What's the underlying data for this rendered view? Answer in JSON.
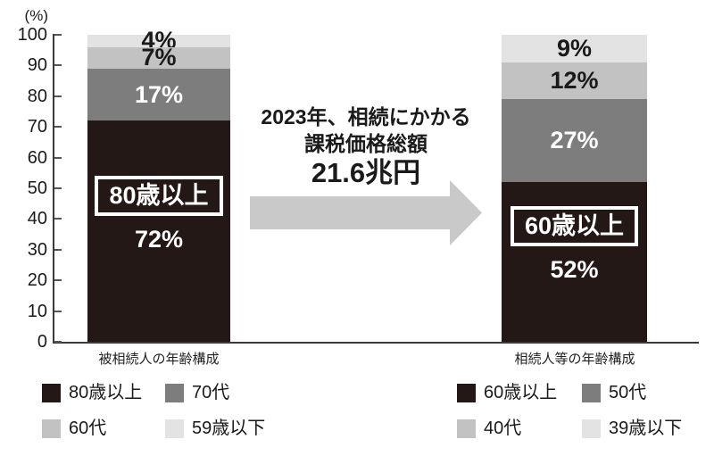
{
  "chart_data": {
    "type": "bar",
    "subtype": "stacked-percentage-columns",
    "unit_label": "(%)",
    "ylim": [
      0,
      100
    ],
    "yticks": [
      0,
      10,
      20,
      30,
      40,
      50,
      60,
      70,
      80,
      90,
      100
    ],
    "grid": false,
    "colors": {
      "dark": "#231815",
      "mid_gray": "#7d7d7d",
      "light_gray": "#c2c2c2",
      "lightest_gray": "#e3e3e3",
      "arrow": "#c9c9c9",
      "axis": "#3a3a3a"
    },
    "annotation": {
      "line1": "2023年、相続にかかる",
      "line2": "課税価格総額",
      "line3": "21.6兆円"
    },
    "bars": [
      {
        "caption": "被相続人の年齢構成",
        "segments": [
          {
            "label": "59歳以下",
            "value": 4,
            "value_label": "4%",
            "color": "#e3e3e3",
            "text_color": "#1a1a1a"
          },
          {
            "label": "60代",
            "value": 7,
            "value_label": "7%",
            "color": "#c2c2c2",
            "text_color": "#1a1a1a"
          },
          {
            "label": "70代",
            "value": 17,
            "value_label": "17%",
            "color": "#7d7d7d",
            "text_color": "#ffffff"
          },
          {
            "label": "80歳以上",
            "value": 72,
            "value_label": "72%",
            "color": "#231815",
            "text_color": "#ffffff",
            "highlight_label": "80歳以上"
          }
        ]
      },
      {
        "caption": "相続人等の年齢構成",
        "segments": [
          {
            "label": "39歳以下",
            "value": 9,
            "value_label": "9%",
            "color": "#e3e3e3",
            "text_color": "#1a1a1a"
          },
          {
            "label": "40代",
            "value": 12,
            "value_label": "12%",
            "color": "#c2c2c2",
            "text_color": "#1a1a1a"
          },
          {
            "label": "50代",
            "value": 27,
            "value_label": "27%",
            "color": "#7d7d7d",
            "text_color": "#ffffff"
          },
          {
            "label": "60歳以上",
            "value": 52,
            "value_label": "52%",
            "color": "#231815",
            "text_color": "#ffffff",
            "highlight_label": "60歳以上"
          }
        ]
      }
    ],
    "legends": [
      {
        "items": [
          {
            "label": "80歳以上",
            "color": "#231815"
          },
          {
            "label": "70代",
            "color": "#7d7d7d"
          },
          {
            "label": "60代",
            "color": "#c2c2c2"
          },
          {
            "label": "59歳以下",
            "color": "#e3e3e3"
          }
        ]
      },
      {
        "items": [
          {
            "label": "60歳以上",
            "color": "#231815"
          },
          {
            "label": "50代",
            "color": "#7d7d7d"
          },
          {
            "label": "40代",
            "color": "#c2c2c2"
          },
          {
            "label": "39歳以下",
            "color": "#e3e3e3"
          }
        ]
      }
    ]
  }
}
